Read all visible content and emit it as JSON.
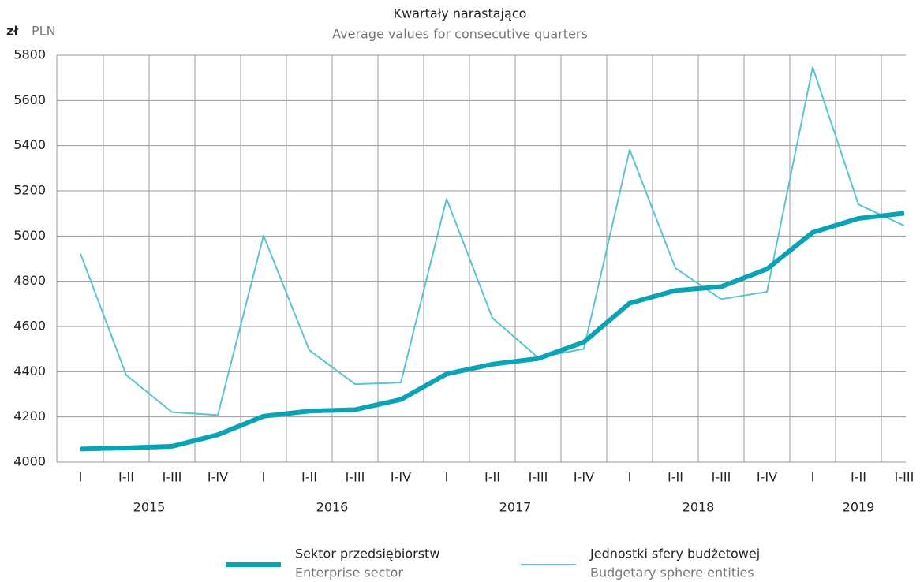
{
  "chart_data": {
    "type": "line",
    "title": "Kwartały narastająco",
    "subtitle": "Average values for consecutive quarters",
    "y_unit": "zł",
    "y_unit_en": "PLN",
    "categories": [
      "I",
      "I-II",
      "I-III",
      "I-IV",
      "I",
      "I-II",
      "I-III",
      "I-IV",
      "I",
      "I-II",
      "I-III",
      "I-IV",
      "I",
      "I-II",
      "I-III",
      "I-IV",
      "I",
      "I-II",
      "I-III"
    ],
    "years": [
      "2015",
      "2016",
      "2017",
      "2018",
      "2019"
    ],
    "series": [
      {
        "name": "Sektor przedsiębiorstw",
        "name_en": "Enterprise sector",
        "color": "#0aa3b5",
        "values": [
          4058,
          4063,
          4070,
          4121,
          4203,
          4226,
          4232,
          4277,
          4390,
          4433,
          4458,
          4531,
          4703,
          4759,
          4776,
          4854,
          5016,
          5078,
          5101
        ]
      },
      {
        "name": "Jednostki sfery budżetowej",
        "name_en": "Budgetary sphere entities",
        "color": "#5bc4d0",
        "values": [
          4922,
          4385,
          4221,
          4208,
          5002,
          4495,
          4345,
          4352,
          5165,
          4638,
          4462,
          4501,
          5382,
          4858,
          4721,
          4753,
          5747,
          5140,
          5046
        ]
      }
    ],
    "ylim": [
      4000,
      5800
    ],
    "yticks": [
      4000,
      4200,
      4400,
      4600,
      4800,
      5000,
      5200,
      5400,
      5600,
      5800
    ],
    "grid": true
  }
}
